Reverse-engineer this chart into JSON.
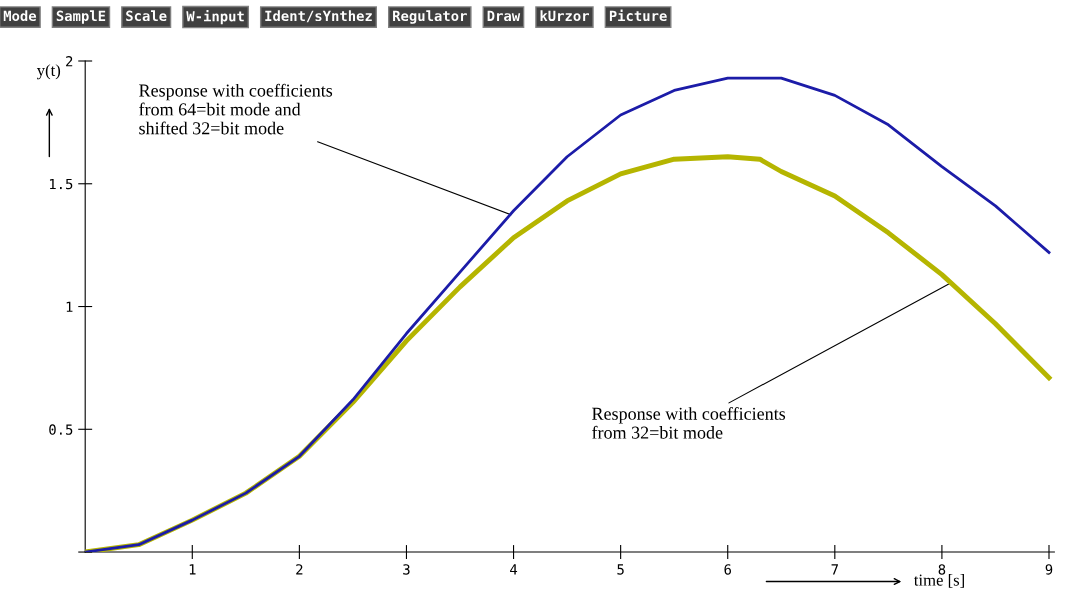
{
  "chart_data": {
    "type": "line",
    "x": [
      0,
      0.5,
      1,
      1.5,
      2,
      2.5,
      3,
      3.5,
      4,
      4.5,
      5,
      5.5,
      6,
      6.3,
      6.5,
      7,
      7.5,
      8,
      8.5,
      9
    ],
    "series": [
      {
        "color": "#1c1ca8",
        "values": [
          0,
          0.03,
          0.13,
          0.24,
          0.39,
          0.62,
          0.89,
          1.14,
          1.39,
          1.61,
          1.78,
          1.88,
          1.93,
          1.93,
          1.93,
          1.86,
          1.74,
          1.57,
          1.41,
          1.22
        ]
      },
      {
        "color": "#b5b500",
        "values": [
          0,
          0.03,
          0.13,
          0.24,
          0.39,
          0.61,
          0.86,
          1.08,
          1.28,
          1.43,
          1.54,
          1.6,
          1.61,
          1.6,
          1.55,
          1.45,
          1.3,
          1.13,
          0.93,
          0.71
        ]
      }
    ],
    "xlabel": "time [s]",
    "ylabel": "y(t)",
    "xlim": [
      0,
      9.05
    ],
    "ylim": [
      0,
      2
    ],
    "xticks": [
      1,
      2,
      3,
      4,
      5,
      6,
      7,
      8,
      9
    ],
    "yticks": [
      {
        "value": 0,
        "label": null
      },
      0.5,
      1,
      1.5,
      2
    ],
    "grid": false,
    "legend": false,
    "marker": "none",
    "line_style": "solid",
    "annotations": [
      "Mode",
      "SamplE",
      "Scale",
      "W-input",
      "Ident/sYnthez",
      "Regulator",
      "Draw",
      "kUrzor",
      "Picture",
      {
        "text": "Response with coefficients\nfrom 64=bit mode and\nshifted 32=bit mode",
        "x": 4,
        "y": 1.37
      },
      {
        "text": "Response with coefficients\nfrom 32=bit mode",
        "x": 8.1,
        "y": 1.1
      }
    ]
  }
}
